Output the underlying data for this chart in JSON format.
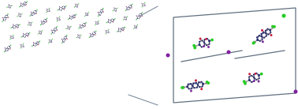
{
  "bg_color": "#ffffff",
  "atom_colors": {
    "C": "#b0b0b0",
    "H": "#e0e0e0",
    "N": "#8030a0",
    "O": "#cc2040",
    "Cl": "#22cc22",
    "I": "#8020a0",
    "ring_C": "#2a3070"
  },
  "bond_color": "#aaaaaa",
  "bond_color_dark": "#505070",
  "unit_cell_color": "#607080",
  "connector_color": "#708090",
  "left_bg": "#ffffff",
  "right_bg": "#ffffff"
}
